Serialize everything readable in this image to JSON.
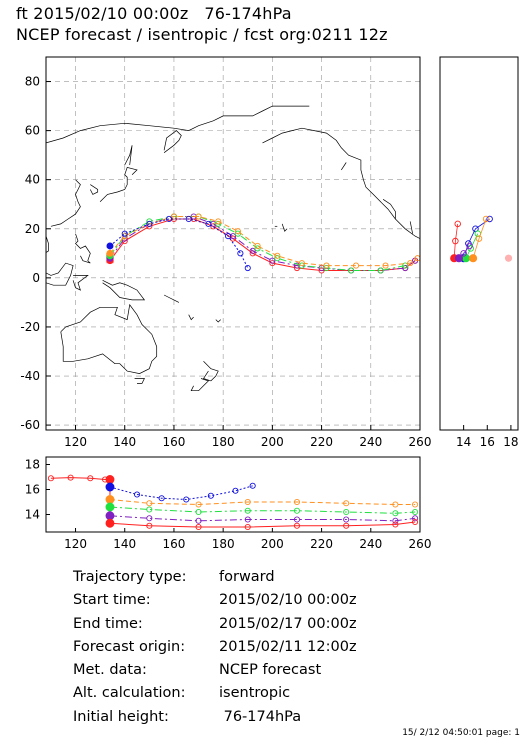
{
  "title_line1": "ft 2015/02/10 00:00z   76-174hPa",
  "title_line2": "NCEP forecast / isentropic / fcst org:0211 12z",
  "info": [
    {
      "label": "Trajectory type:",
      "value": "forward"
    },
    {
      "label": "Start time:",
      "value": "2015/02/10 00:00z"
    },
    {
      "label": "End time:",
      "value": "2015/02/17 00:00z"
    },
    {
      "label": "Forecast origin:",
      "value": "2015/02/11 12:00z"
    },
    {
      "label": "Met. data:",
      "value": "NCEP forecast"
    },
    {
      "label": "Alt. calculation:",
      "value": "isentropic"
    },
    {
      "label": "Initial height:",
      "value": " 76-174hPa"
    }
  ],
  "footer": "15/ 2/12 04:50:01 page: 1",
  "colors": {
    "red": "#ff2020",
    "blue": "#1010e0",
    "green": "#20e040",
    "orange": "#ff9020",
    "gray": "#aaaaaa",
    "pink": "#ffb0b0"
  },
  "chart_data": [
    {
      "type": "line",
      "panel": "map",
      "xlim": [
        108,
        260
      ],
      "ylim": [
        -62,
        90
      ],
      "xticks": [
        120,
        140,
        160,
        180,
        200,
        220,
        240,
        260
      ],
      "yticks": [
        -60,
        -40,
        -20,
        0,
        20,
        40,
        60,
        80
      ],
      "grid": true,
      "series": [
        {
          "color": "red",
          "style": "solid",
          "x": [
            134,
            140,
            150,
            160,
            168,
            176,
            184,
            192,
            200,
            210,
            220,
            232,
            244,
            254,
            258
          ],
          "y": [
            7,
            15,
            21,
            24,
            24,
            21,
            16,
            10,
            6,
            4,
            3,
            3,
            3,
            4,
            7
          ]
        },
        {
          "color": "purple",
          "style": "dashdot",
          "x": [
            134,
            140,
            150,
            160,
            168,
            176,
            184,
            192,
            200,
            210,
            220,
            232,
            244,
            254,
            258
          ],
          "y": [
            8,
            16,
            22,
            25,
            25,
            22,
            17,
            11,
            7,
            5,
            4,
            3,
            3,
            4,
            7
          ]
        },
        {
          "color": "green",
          "style": "dashdot",
          "x": [
            134,
            140,
            150,
            160,
            170,
            178,
            186,
            194,
            202,
            212,
            222,
            232,
            244,
            254
          ],
          "y": [
            9,
            17,
            23,
            25,
            25,
            22,
            18,
            12,
            8,
            5,
            4,
            3,
            3,
            5
          ]
        },
        {
          "color": "orange",
          "style": "dashed",
          "x": [
            134,
            140,
            150,
            160,
            170,
            178,
            186,
            194,
            202,
            212,
            222,
            234,
            246,
            256,
            259
          ],
          "y": [
            10,
            17,
            22,
            25,
            25,
            23,
            19,
            13,
            9,
            6,
            5,
            5,
            5,
            6,
            8
          ]
        },
        {
          "color": "blue",
          "style": "dotted",
          "x": [
            134,
            140,
            150,
            158,
            166,
            174,
            182,
            187,
            190
          ],
          "y": [
            13,
            18,
            22,
            24,
            24,
            22,
            17,
            10,
            4
          ]
        }
      ]
    },
    {
      "type": "line",
      "panel": "height",
      "xlim": [
        108,
        260
      ],
      "ylim": [
        12.6,
        18.6
      ],
      "xticks": [
        120,
        140,
        160,
        180,
        200,
        220,
        240,
        260
      ],
      "yticks": [
        14,
        16,
        18
      ],
      "series": [
        {
          "color": "red",
          "style": "solid",
          "x": [
            110,
            118,
            126,
            132,
            134
          ],
          "y": [
            16.9,
            16.95,
            16.9,
            16.8,
            16.8
          ]
        },
        {
          "color": "blue",
          "style": "dotted",
          "x": [
            134,
            145,
            155,
            165,
            175,
            185,
            192
          ],
          "y": [
            16.2,
            15.6,
            15.3,
            15.2,
            15.5,
            15.9,
            16.3
          ]
        },
        {
          "color": "orange",
          "style": "dashed",
          "x": [
            134,
            150,
            170,
            190,
            210,
            230,
            250,
            258
          ],
          "y": [
            15.2,
            14.9,
            14.8,
            15.0,
            15.0,
            14.9,
            14.8,
            14.8
          ]
        },
        {
          "color": "green",
          "style": "dashdot",
          "x": [
            134,
            150,
            170,
            190,
            210,
            230,
            250,
            258
          ],
          "y": [
            14.6,
            14.4,
            14.2,
            14.3,
            14.3,
            14.2,
            14.1,
            14.2
          ]
        },
        {
          "color": "purple",
          "style": "dashdot",
          "x": [
            134,
            150,
            170,
            190,
            210,
            230,
            250,
            258
          ],
          "y": [
            13.9,
            13.7,
            13.5,
            13.6,
            13.6,
            13.6,
            13.5,
            13.7
          ]
        },
        {
          "color": "red",
          "style": "solid",
          "x": [
            134,
            150,
            170,
            190,
            210,
            230,
            250,
            258
          ],
          "y": [
            13.3,
            13.1,
            13.0,
            13.0,
            13.1,
            13.1,
            13.2,
            13.4
          ]
        }
      ]
    },
    {
      "type": "scatter",
      "panel": "side",
      "xlim": [
        12,
        18.6
      ],
      "ylim": [
        -62,
        90
      ],
      "xticks": [
        14,
        16,
        18
      ],
      "series": [
        {
          "color": "red",
          "x": [
            13.2,
            13.3,
            13.5
          ],
          "y": [
            8,
            15,
            22
          ]
        },
        {
          "color": "blue",
          "x": [
            14.0,
            14.4,
            15.0,
            16.2
          ],
          "y": [
            8,
            14,
            20,
            24
          ]
        },
        {
          "color": "green",
          "x": [
            14.2,
            14.6,
            15.2
          ],
          "y": [
            8,
            12,
            18
          ]
        },
        {
          "color": "orange",
          "x": [
            14.8,
            15.3,
            15.9
          ],
          "y": [
            8,
            16,
            24
          ]
        },
        {
          "color": "purple",
          "x": [
            13.6,
            14.0,
            14.5
          ],
          "y": [
            8,
            10,
            13
          ]
        }
      ]
    }
  ]
}
